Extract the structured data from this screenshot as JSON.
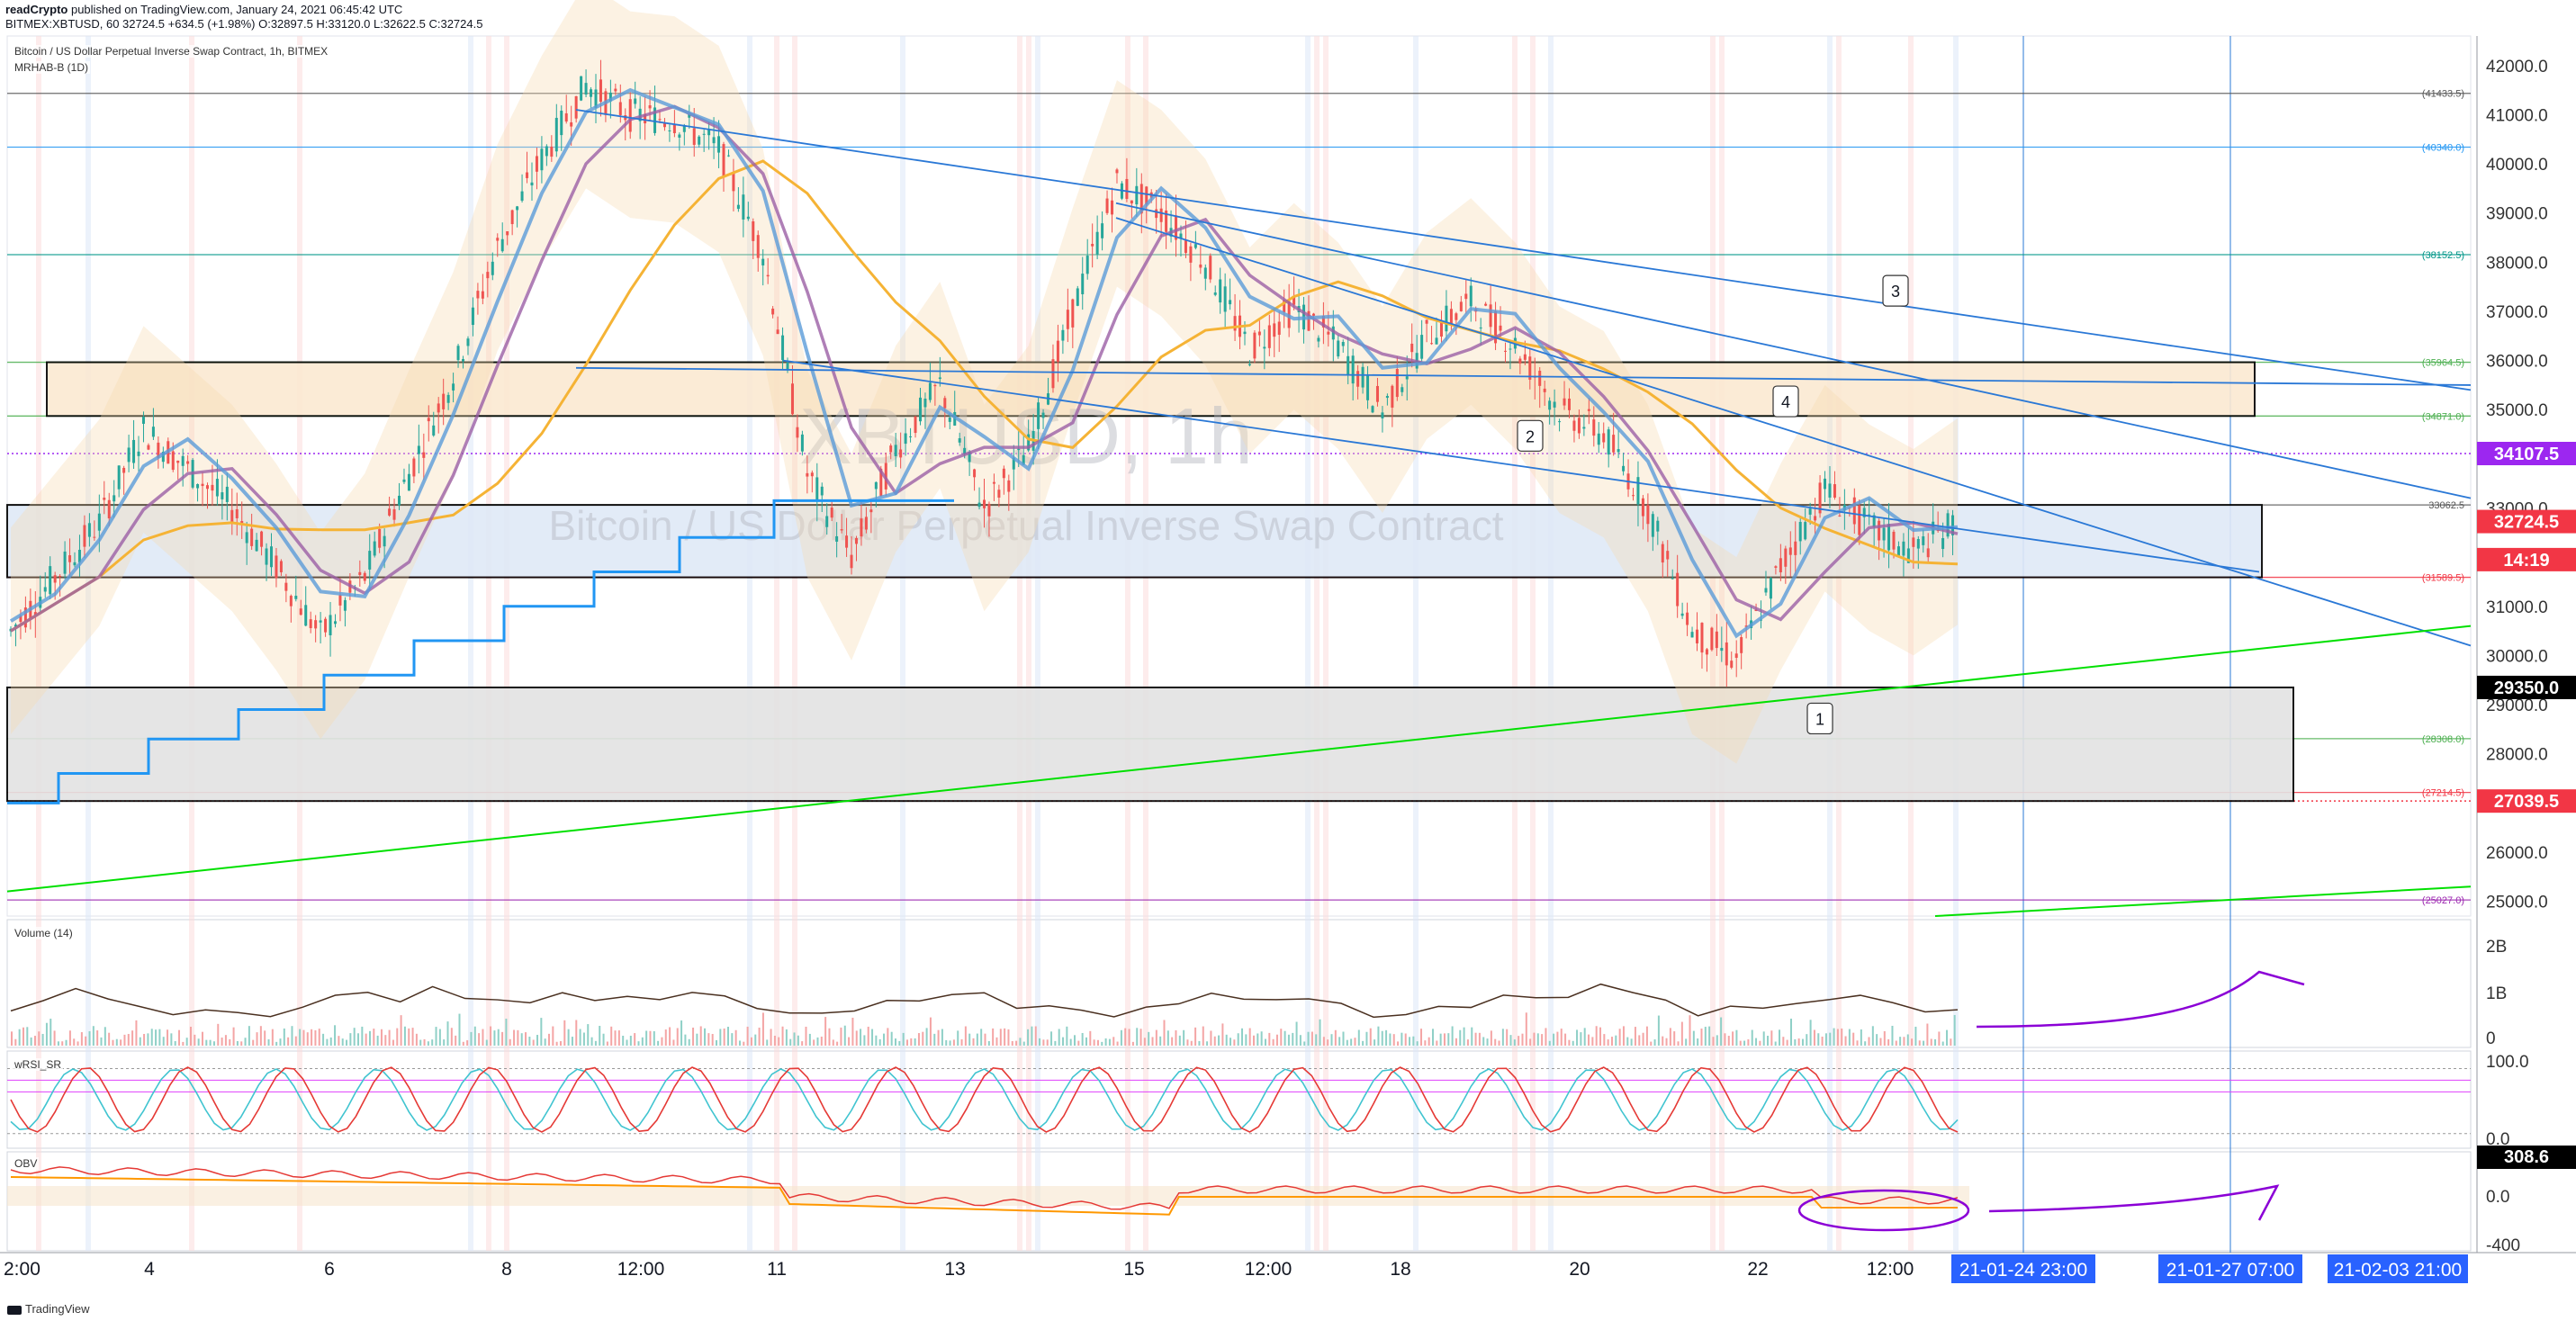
{
  "header": {
    "publisher": "readCrypto",
    "published_text": " published on TradingView.com, January 24, 2021 06:45:42 UTC",
    "symbol_line": "BITMEX:XBTUSD, 60 32724.5 +634.5 (+1.98%) O:32897.5 H:33120.0 L:32622.5 C:32724.5"
  },
  "main_pane": {
    "title": "Bitcoin / US Dollar Perpetual Inverse Swap Contract, 1h, BITMEX",
    "indicator": "MRHAB-B (1D)",
    "watermark_symbol": "XBTUSD, 1h",
    "watermark_name": "Bitcoin / US Dollar Perpetual Inverse Swap Contract"
  },
  "volume_pane": {
    "label": "Volume (14)",
    "ticks": [
      "2B",
      "1B",
      "0"
    ]
  },
  "rsi_pane": {
    "label": "wRSI_SR",
    "ticks": [
      "100.0",
      "0.0"
    ]
  },
  "obv_pane": {
    "label": "OBV",
    "ticks": [
      "308.6",
      "0.0",
      "-400"
    ]
  },
  "footer": {
    "brand": "TradingView"
  },
  "colors": {
    "up_candle": "#26a69a",
    "down_candle": "#ef5350",
    "tag_purple": "#9c27f0",
    "tag_red": "#f23645",
    "tag_black": "#000000",
    "date_tag": "#2962ff",
    "support_green": "#00e000",
    "trend_blue": "#2a78d6"
  },
  "chart_data": {
    "type": "line",
    "title": "Bitcoin / US Dollar Perpetual Inverse Swap Contract, 1h, BITMEX",
    "y_ticks": [
      25000,
      26000,
      27000,
      28000,
      29000,
      30000,
      31000,
      32000,
      33000,
      34000,
      35000,
      36000,
      37000,
      38000,
      39000,
      40000,
      41000,
      42000
    ],
    "y_tick_labels": [
      "25000.0",
      "26000.0",
      "27000.0",
      "28000.0",
      "29000.0",
      "30000.0",
      "31000.0",
      "32000.0",
      "33000.0",
      "34000.0",
      "35000.0",
      "36000.0",
      "37000.0",
      "38000.0",
      "39000.0",
      "40000.0",
      "41000.0",
      "42000.0"
    ],
    "ylim": [
      24700,
      42600
    ],
    "x_tick_labels": [
      "2:00",
      "4",
      "6",
      "8",
      "12:00",
      "11",
      "13",
      "15",
      "12:00",
      "18",
      "20",
      "22",
      "12:00"
    ],
    "date_tags": [
      "21-01-24  23:00",
      "21-01-27  07:00",
      "21-02-03  21:00"
    ],
    "price_tags": [
      {
        "value": 34107.5,
        "text": "34107.5",
        "color": "#9c27f0"
      },
      {
        "value": 32724.5,
        "text": "32724.5",
        "color": "#f23645"
      },
      {
        "value": 31950,
        "text": "14:19",
        "color": "#f23645"
      },
      {
        "value": 29350.0,
        "text": "29350.0",
        "color": "#000000"
      },
      {
        "value": 27039.5,
        "text": "27039.5",
        "color": "#f23645"
      }
    ],
    "horizontal_levels": [
      {
        "value": 41433.5,
        "text": "(41433.5)",
        "color": "#555555"
      },
      {
        "value": 40340.0,
        "text": "(40340.0)",
        "color": "#2196f3"
      },
      {
        "value": 38152.5,
        "text": "(38152.5)",
        "color": "#009688"
      },
      {
        "value": 35964.5,
        "text": "(35964.5)",
        "color": "#4caf50"
      },
      {
        "value": 34871.0,
        "text": "(34871.0)",
        "color": "#4caf50"
      },
      {
        "value": 33062.5,
        "text": "33062.5",
        "color": "#555555"
      },
      {
        "value": 31589.5,
        "text": "(31589.5)",
        "color": "#f23645"
      },
      {
        "value": 28308.0,
        "text": "(28308.0)",
        "color": "#4caf50"
      },
      {
        "value": 27214.5,
        "text": "(27214.5)",
        "color": "#f23645"
      },
      {
        "value": 25027.0,
        "text": "(25027.0)",
        "color": "#9c27b0"
      }
    ],
    "zones": [
      {
        "from": 34871,
        "to": 35964.5,
        "fill": "#fbe9d2"
      },
      {
        "from": 31589.5,
        "to": 33062.5,
        "fill": "#dfe9f7"
      },
      {
        "from": 27039.5,
        "to": 29350,
        "fill": "#e3e3e3"
      }
    ],
    "annotations": [
      "1",
      "2",
      "3",
      "4"
    ],
    "close_series": [
      30500,
      31600,
      32700,
      34600,
      33800,
      33000,
      31800,
      30400,
      31600,
      33700,
      35700,
      38300,
      40100,
      41600,
      41000,
      40900,
      40300,
      38200,
      33700,
      32000,
      34200,
      35500,
      33000,
      34200,
      37000,
      39600,
      39000,
      38000,
      36200,
      37100,
      36300,
      35000,
      36500,
      37200,
      36300,
      35000,
      34500,
      33000,
      30500,
      29900,
      31800,
      33400,
      32600,
      32100,
      32724.5
    ],
    "series": [
      {
        "name": "Volume (14)",
        "approx_range": [
          0,
          2000000000
        ]
      },
      {
        "name": "wRSI_SR",
        "approx_range": [
          0,
          100
        ]
      },
      {
        "name": "OBV",
        "last": 308.6
      }
    ]
  }
}
